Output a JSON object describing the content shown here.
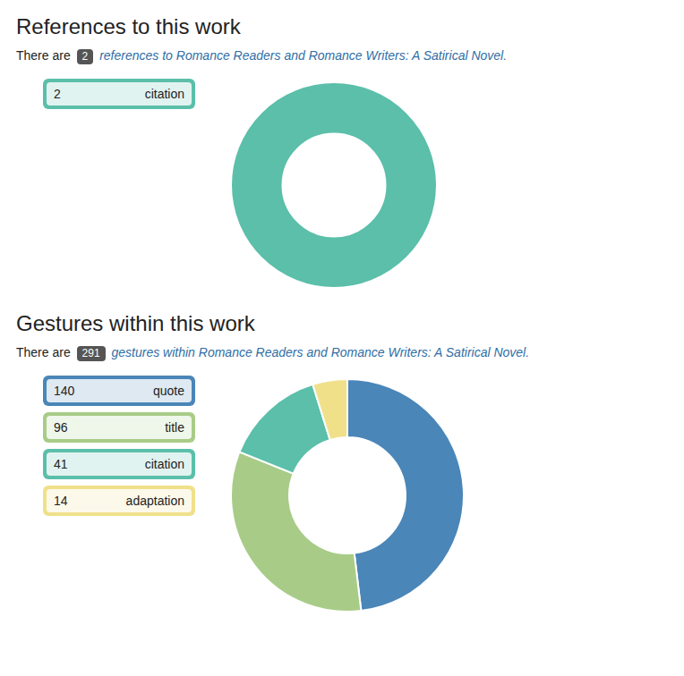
{
  "chart_data": [
    {
      "type": "donut",
      "title": "References to this work",
      "subtitle": [
        "There are",
        "2",
        "references to",
        "Romance Readers and Romance Writers: A Satirical Novel."
      ],
      "categories": [
        "citation"
      ],
      "values": [
        2
      ],
      "colors": [
        "#5bbfaa"
      ],
      "legend": "left"
    },
    {
      "type": "donut",
      "title": "Gestures within this work",
      "subtitle": [
        "There are",
        "291",
        "gestures within",
        "Romance Readers and Romance Writers: A Satirical Novel."
      ],
      "categories": [
        "quote",
        "title",
        "citation",
        "adaptation"
      ],
      "values": [
        140,
        96,
        41,
        14
      ],
      "colors": [
        "#4a86b8",
        "#a8cc88",
        "#5bbfaa",
        "#f0e08a"
      ],
      "legend": "left"
    }
  ]
}
